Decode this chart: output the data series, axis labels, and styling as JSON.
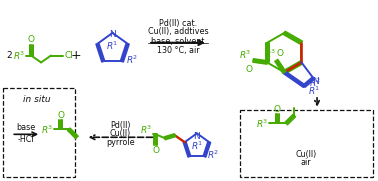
{
  "bg_color": "#ffffff",
  "green": "#44aa00",
  "blue": "#3344cc",
  "red": "#cc2200",
  "black": "#111111",
  "reaction_conditions_top": [
    "Pd(II) cat.",
    "Cu(II), addtives",
    "base, solvent",
    "130 °C, air"
  ],
  "reaction_conditions_bottom": [
    "Pd(II)",
    "Cu(II)",
    "pyrrole"
  ],
  "label_in_situ": "in situ",
  "label_base": "base",
  "label_hcl": "-HCl",
  "label_cu": "Cu(II)",
  "label_air": "air"
}
